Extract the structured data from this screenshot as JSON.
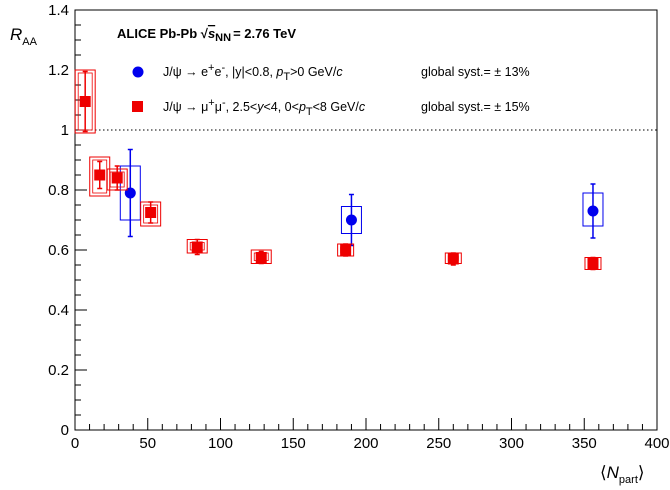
{
  "chart_data": {
    "type": "scatter",
    "title": "ALICE Pb-Pb",
    "energy_label": {
      "prefix": "√",
      "var": "s",
      "sub": "NN",
      "value": "= 2.76 TeV"
    },
    "xlabel": {
      "main": "N",
      "sub": "part"
    },
    "ylabel": {
      "main": "R",
      "sub": "AA"
    },
    "xlim": [
      0,
      400
    ],
    "ylim": [
      0,
      1.4
    ],
    "x_ticks": [
      0,
      50,
      100,
      150,
      200,
      250,
      300,
      350,
      400
    ],
    "y_ticks": [
      0,
      0.2,
      0.4,
      0.6,
      0.8,
      1,
      1.2,
      1.4
    ],
    "x_tick_labels": [
      "0",
      "50",
      "100",
      "150",
      "200",
      "250",
      "300",
      "350",
      "400"
    ],
    "y_tick_labels": [
      "0",
      "0.2",
      "0.4",
      "0.6",
      "0.8",
      "1",
      "1.2",
      "1.4"
    ],
    "reference_line": 1.0,
    "grid": false,
    "legend_position": "top",
    "series": [
      {
        "name": "J/ψ → e⁺e⁻, |y|<0.8, pT>0 GeV/c",
        "name_parts": {
          "decay": "J/ψ → e",
          "sup1": "+",
          "mid": "e",
          "sup2": "-",
          "cut1": ", |y|<0.8, ",
          "var": "p",
          "var_sub": "T",
          "cut2": ">0 GeV/",
          "unit": "c"
        },
        "syst": "global syst.= ± 13%",
        "marker": "circle",
        "color": "#0000ee",
        "points": [
          {
            "x": 38,
            "y": 0.79,
            "stat": 0.145,
            "syst_lo": 0.7,
            "syst_hi": 0.88,
            "syst_w": 10
          },
          {
            "x": 190,
            "y": 0.7,
            "stat": 0.085,
            "syst_lo": 0.655,
            "syst_hi": 0.745,
            "syst_w": 10
          },
          {
            "x": 356,
            "y": 0.73,
            "stat": 0.09,
            "syst_lo": 0.68,
            "syst_hi": 0.79,
            "syst_w": 10
          }
        ]
      },
      {
        "name": "J/ψ → μ⁺μ⁻, 2.5<y<4, 0<pT<8 GeV/c",
        "name_parts": {
          "decay": "J/ψ → μ",
          "sup1": "+",
          "mid": "μ",
          "sup2": "-",
          "cut1": ", 2.5<",
          "yvar": "y",
          "cut1b": "<4, 0<",
          "var": "p",
          "var_sub": "T",
          "cut2": "<8 GeV/",
          "unit": "c"
        },
        "syst": "global syst.= ± 15%",
        "marker": "square",
        "color": "#ee0000",
        "points": [
          {
            "x": 7,
            "y": 1.095,
            "stat": 0.1,
            "syst_lo": 0.99,
            "syst_hi": 1.2,
            "syst_w": 10
          },
          {
            "x": 17,
            "y": 0.85,
            "stat": 0.045,
            "syst_lo": 0.78,
            "syst_hi": 0.91,
            "syst_w": 10
          },
          {
            "x": 29,
            "y": 0.84,
            "stat": 0.04,
            "syst_lo": 0.8,
            "syst_hi": 0.87,
            "syst_w": 10
          },
          {
            "x": 52,
            "y": 0.725,
            "stat": 0.035,
            "syst_lo": 0.68,
            "syst_hi": 0.76,
            "syst_w": 10
          },
          {
            "x": 84,
            "y": 0.61,
            "stat": 0.025,
            "syst_lo": 0.59,
            "syst_hi": 0.635,
            "syst_w": 10
          },
          {
            "x": 128,
            "y": 0.575,
            "stat": 0.02,
            "syst_lo": 0.555,
            "syst_hi": 0.6,
            "syst_w": 10
          },
          {
            "x": 186,
            "y": 0.6,
            "stat": 0.02,
            "syst_lo": 0.58,
            "syst_hi": 0.62,
            "syst_w": 8
          },
          {
            "x": 260,
            "y": 0.57,
            "stat": 0.02,
            "syst_lo": 0.555,
            "syst_hi": 0.59,
            "syst_w": 8
          },
          {
            "x": 356,
            "y": 0.555,
            "stat": 0.02,
            "syst_lo": 0.535,
            "syst_hi": 0.575,
            "syst_w": 8
          }
        ]
      }
    ]
  }
}
